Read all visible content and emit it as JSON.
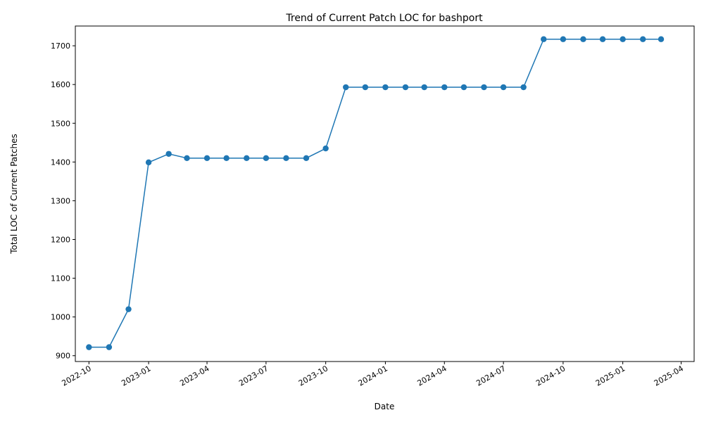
{
  "chart_data": {
    "type": "line",
    "title": "Trend of Current Patch LOC for bashport",
    "xlabel": "Date",
    "ylabel": "Total LOC of Current Patches",
    "x_ticks": [
      "2022-10",
      "2023-01",
      "2023-04",
      "2023-07",
      "2023-10",
      "2024-01",
      "2024-04",
      "2024-07",
      "2024-10",
      "2025-01",
      "2025-04"
    ],
    "y_ticks": [
      900,
      1000,
      1100,
      1200,
      1300,
      1400,
      1500,
      1600,
      1700
    ],
    "xlim": [
      "2022-09-10",
      "2025-04-21"
    ],
    "ylim": [
      885,
      1751
    ],
    "grid": false,
    "marker": "circle",
    "color": "#1f77b4",
    "series": [
      {
        "x": [
          "2022-10-01",
          "2022-11-01",
          "2022-12-01",
          "2023-01-01",
          "2023-02-01",
          "2023-03-01",
          "2023-04-01",
          "2023-05-01",
          "2023-06-01",
          "2023-07-01",
          "2023-08-01",
          "2023-09-01",
          "2023-10-01",
          "2023-11-01",
          "2023-12-01",
          "2024-01-01",
          "2024-02-01",
          "2024-03-01",
          "2024-04-01",
          "2024-05-01",
          "2024-06-01",
          "2024-07-01",
          "2024-08-01",
          "2024-09-01",
          "2024-10-01",
          "2024-11-01",
          "2024-12-01",
          "2025-01-01",
          "2025-02-01",
          "2025-03-01"
        ],
        "values": [
          922,
          922,
          1020,
          1399,
          1421,
          1410,
          1410,
          1410,
          1410,
          1410,
          1410,
          1410,
          1435,
          1593,
          1593,
          1593,
          1593,
          1593,
          1593,
          1593,
          1593,
          1593,
          1593,
          1717,
          1717,
          1717,
          1717,
          1717,
          1717,
          1717
        ]
      }
    ]
  }
}
